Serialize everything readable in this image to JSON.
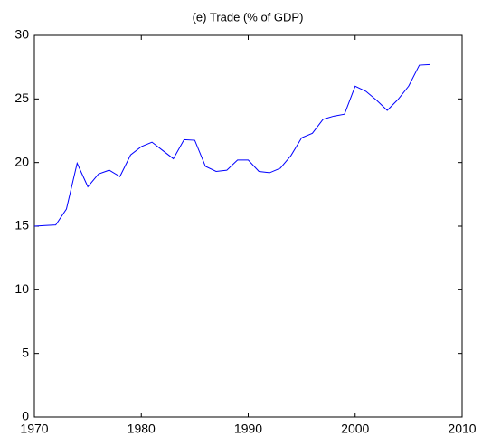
{
  "chart_data": {
    "type": "line",
    "title": "(e) Trade (% of GDP)",
    "x": [
      1970,
      1971,
      1972,
      1973,
      1974,
      1975,
      1976,
      1977,
      1978,
      1979,
      1980,
      1981,
      1982,
      1983,
      1984,
      1985,
      1986,
      1987,
      1988,
      1989,
      1990,
      1991,
      1992,
      1993,
      1994,
      1995,
      1996,
      1997,
      1998,
      1999,
      2000,
      2001,
      2002,
      2003,
      2004,
      2005,
      2006,
      2007
    ],
    "series": [
      {
        "color": "#0000ff",
        "values": [
          15.0,
          15.05,
          15.1,
          16.35,
          19.95,
          18.1,
          19.1,
          19.4,
          18.9,
          20.6,
          21.25,
          21.6,
          20.95,
          20.3,
          21.8,
          21.75,
          19.7,
          19.3,
          19.4,
          20.2,
          20.2,
          19.3,
          19.2,
          19.55,
          20.55,
          21.95,
          22.3,
          23.4,
          23.65,
          23.8,
          26.0,
          25.6,
          24.9,
          24.1,
          24.95,
          26.0,
          27.65,
          27.7
        ]
      }
    ],
    "xlim": [
      1970,
      2010
    ],
    "xticks": [
      1970,
      1980,
      1990,
      2000,
      2010
    ],
    "ylim": [
      0,
      30
    ],
    "yticks": [
      0,
      5,
      10,
      15,
      20,
      25,
      30
    ]
  }
}
